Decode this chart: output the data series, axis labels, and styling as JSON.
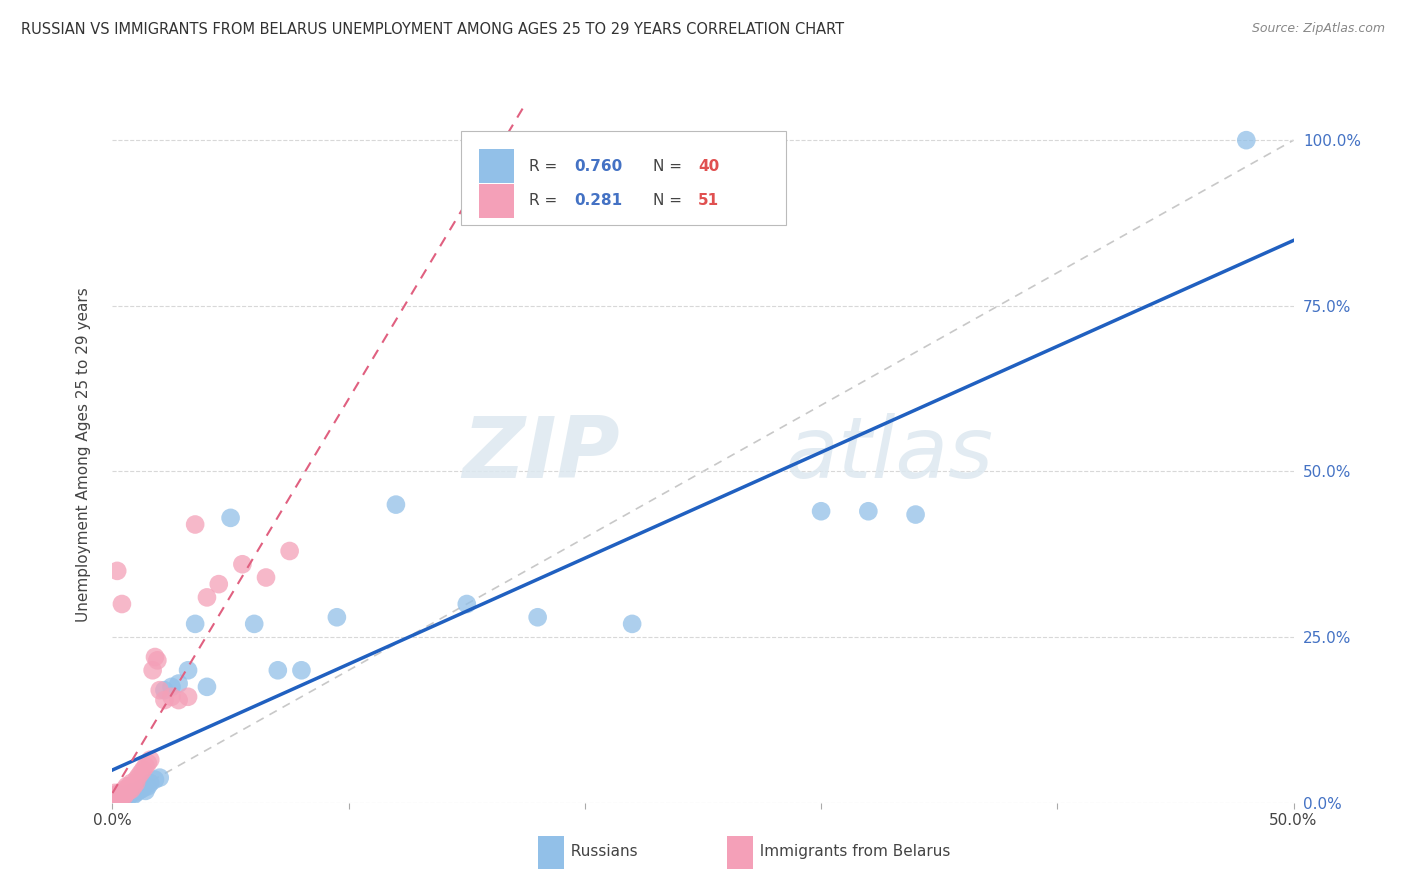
{
  "title": "RUSSIAN VS IMMIGRANTS FROM BELARUS UNEMPLOYMENT AMONG AGES 25 TO 29 YEARS CORRELATION CHART",
  "source": "Source: ZipAtlas.com",
  "ylabel": "Unemployment Among Ages 25 to 29 years",
  "xlim": [
    0,
    0.5
  ],
  "ylim": [
    0,
    1.05
  ],
  "legend_r_russian": "0.760",
  "legend_n_russian": "40",
  "legend_r_belarus": "0.281",
  "legend_n_belarus": "51",
  "russian_color": "#92c0e8",
  "belarus_color": "#f4a0b8",
  "russian_line_color": "#2060c0",
  "belarus_line_color": "#e06080",
  "diagonal_color": "#c8c8c8",
  "background_color": "#ffffff",
  "watermark_zip": "ZIP",
  "watermark_atlas": "atlas",
  "russians_x": [
    0.001,
    0.001,
    0.002,
    0.002,
    0.003,
    0.003,
    0.004,
    0.005,
    0.006,
    0.007,
    0.008,
    0.009,
    0.01,
    0.011,
    0.012,
    0.013,
    0.014,
    0.015,
    0.016,
    0.018,
    0.02,
    0.022,
    0.025,
    0.028,
    0.032,
    0.035,
    0.04,
    0.05,
    0.06,
    0.07,
    0.08,
    0.095,
    0.12,
    0.15,
    0.18,
    0.22,
    0.3,
    0.32,
    0.34,
    0.48
  ],
  "russians_y": [
    0.005,
    0.008,
    0.006,
    0.01,
    0.008,
    0.012,
    0.01,
    0.006,
    0.012,
    0.01,
    0.015,
    0.012,
    0.015,
    0.018,
    0.02,
    0.022,
    0.018,
    0.025,
    0.03,
    0.035,
    0.038,
    0.17,
    0.175,
    0.18,
    0.2,
    0.27,
    0.175,
    0.43,
    0.27,
    0.2,
    0.2,
    0.28,
    0.45,
    0.3,
    0.28,
    0.27,
    0.44,
    0.44,
    0.435,
    1.0
  ],
  "belarus_x": [
    0.001,
    0.001,
    0.001,
    0.001,
    0.001,
    0.001,
    0.002,
    0.002,
    0.002,
    0.002,
    0.002,
    0.003,
    0.003,
    0.003,
    0.003,
    0.004,
    0.004,
    0.004,
    0.005,
    0.005,
    0.005,
    0.006,
    0.006,
    0.006,
    0.007,
    0.007,
    0.008,
    0.008,
    0.009,
    0.01,
    0.01,
    0.011,
    0.012,
    0.013,
    0.014,
    0.015,
    0.016,
    0.017,
    0.018,
    0.019,
    0.02,
    0.022,
    0.025,
    0.028,
    0.032,
    0.035,
    0.04,
    0.045,
    0.055,
    0.065,
    0.075
  ],
  "belarus_y": [
    0.003,
    0.005,
    0.007,
    0.01,
    0.012,
    0.015,
    0.003,
    0.005,
    0.008,
    0.012,
    0.35,
    0.005,
    0.008,
    0.012,
    0.015,
    0.008,
    0.012,
    0.3,
    0.01,
    0.015,
    0.02,
    0.015,
    0.02,
    0.025,
    0.018,
    0.025,
    0.02,
    0.03,
    0.025,
    0.03,
    0.035,
    0.04,
    0.045,
    0.05,
    0.055,
    0.06,
    0.065,
    0.2,
    0.22,
    0.215,
    0.17,
    0.155,
    0.16,
    0.155,
    0.16,
    0.42,
    0.31,
    0.33,
    0.36,
    0.34,
    0.38
  ]
}
